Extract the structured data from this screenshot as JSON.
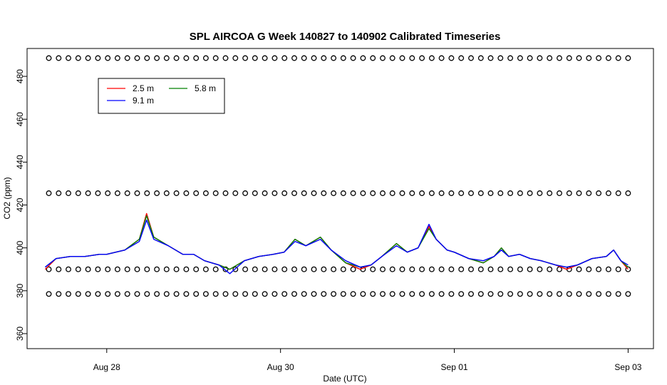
{
  "chart_data": {
    "type": "line",
    "title": "SPL AIRCOA G  Week 140827 to 140902  Calibrated Timeseries",
    "xlabel": "Date (UTC)",
    "ylabel": "CO2 (ppm)",
    "xlim": [
      "2014-08-27T02:00",
      "2014-09-03T07:00"
    ],
    "ylim": [
      353,
      493
    ],
    "x_ticks": [
      {
        "x": "2014-08-28T00:00",
        "label": "Aug 28"
      },
      {
        "x": "2014-08-30T00:00",
        "label": "Aug 30"
      },
      {
        "x": "2014-09-01T00:00",
        "label": "Sep 01"
      },
      {
        "x": "2014-09-03T00:00",
        "label": "Sep 03"
      }
    ],
    "y_ticks": [
      360,
      380,
      400,
      420,
      440,
      460,
      480
    ],
    "grid": false,
    "legend": {
      "position": "top-left",
      "columns": 2
    },
    "series": [
      {
        "name": "2.5 m",
        "color": "#ff0000",
        "points": [
          [
            "2014-08-27T07:00",
            390
          ],
          [
            "2014-08-27T10:00",
            395
          ],
          [
            "2014-08-27T14:00",
            396
          ],
          [
            "2014-08-27T18:00",
            396
          ],
          [
            "2014-08-27T22:00",
            397
          ],
          [
            "2014-08-28T00:00",
            397
          ],
          [
            "2014-08-28T05:00",
            399
          ],
          [
            "2014-08-28T09:00",
            404
          ],
          [
            "2014-08-28T11:00",
            416
          ],
          [
            "2014-08-28T13:00",
            405
          ],
          [
            "2014-08-28T17:00",
            401
          ],
          [
            "2014-08-28T21:00",
            397
          ],
          [
            "2014-08-29T00:00",
            397
          ],
          [
            "2014-08-29T03:00",
            394
          ],
          [
            "2014-08-29T07:00",
            392
          ],
          [
            "2014-08-29T10:00",
            390
          ],
          [
            "2014-08-29T14:00",
            394
          ],
          [
            "2014-08-29T18:00",
            396
          ],
          [
            "2014-08-29T22:00",
            397
          ],
          [
            "2014-08-30T01:00",
            398
          ],
          [
            "2014-08-30T04:00",
            404
          ],
          [
            "2014-08-30T07:00",
            401
          ],
          [
            "2014-08-30T11:00",
            405
          ],
          [
            "2014-08-30T14:00",
            399
          ],
          [
            "2014-08-30T18:00",
            393
          ],
          [
            "2014-08-30T22:00",
            390
          ],
          [
            "2014-08-31T01:00",
            392
          ],
          [
            "2014-08-31T04:00",
            396
          ],
          [
            "2014-08-31T08:00",
            402
          ],
          [
            "2014-08-31T11:00",
            398
          ],
          [
            "2014-08-31T14:00",
            400
          ],
          [
            "2014-08-31T17:00",
            410
          ],
          [
            "2014-08-31T19:00",
            404
          ],
          [
            "2014-08-31T22:00",
            399
          ],
          [
            "2014-09-01T00:00",
            398
          ],
          [
            "2014-09-01T04:00",
            395
          ],
          [
            "2014-09-01T08:00",
            393
          ],
          [
            "2014-09-01T11:00",
            396
          ],
          [
            "2014-09-01T13:00",
            400
          ],
          [
            "2014-09-01T15:00",
            396
          ],
          [
            "2014-09-01T18:00",
            397
          ],
          [
            "2014-09-01T21:00",
            395
          ],
          [
            "2014-09-02T00:00",
            394
          ],
          [
            "2014-09-02T04:00",
            392
          ],
          [
            "2014-09-02T07:00",
            390
          ],
          [
            "2014-09-02T10:00",
            392
          ],
          [
            "2014-09-02T14:00",
            395
          ],
          [
            "2014-09-02T18:00",
            396
          ],
          [
            "2014-09-02T20:00",
            399
          ],
          [
            "2014-09-02T22:00",
            394
          ],
          [
            "2014-09-03T00:00",
            390
          ]
        ]
      },
      {
        "name": "5.8 m",
        "color": "#008000",
        "points": [
          [
            "2014-08-27T07:00",
            391
          ],
          [
            "2014-08-27T10:00",
            395
          ],
          [
            "2014-08-27T14:00",
            396
          ],
          [
            "2014-08-27T18:00",
            396
          ],
          [
            "2014-08-27T22:00",
            397
          ],
          [
            "2014-08-28T00:00",
            397
          ],
          [
            "2014-08-28T05:00",
            399
          ],
          [
            "2014-08-28T09:00",
            404
          ],
          [
            "2014-08-28T11:00",
            415
          ],
          [
            "2014-08-28T13:00",
            405
          ],
          [
            "2014-08-28T17:00",
            401
          ],
          [
            "2014-08-28T21:00",
            397
          ],
          [
            "2014-08-29T00:00",
            397
          ],
          [
            "2014-08-29T03:00",
            394
          ],
          [
            "2014-08-29T07:00",
            392
          ],
          [
            "2014-08-29T10:00",
            390
          ],
          [
            "2014-08-29T14:00",
            394
          ],
          [
            "2014-08-29T18:00",
            396
          ],
          [
            "2014-08-29T22:00",
            397
          ],
          [
            "2014-08-30T01:00",
            398
          ],
          [
            "2014-08-30T04:00",
            404
          ],
          [
            "2014-08-30T07:00",
            401
          ],
          [
            "2014-08-30T11:00",
            405
          ],
          [
            "2014-08-30T14:00",
            399
          ],
          [
            "2014-08-30T18:00",
            393
          ],
          [
            "2014-08-30T22:00",
            391
          ],
          [
            "2014-08-31T01:00",
            392
          ],
          [
            "2014-08-31T04:00",
            396
          ],
          [
            "2014-08-31T08:00",
            402
          ],
          [
            "2014-08-31T11:00",
            398
          ],
          [
            "2014-08-31T14:00",
            400
          ],
          [
            "2014-08-31T17:00",
            409
          ],
          [
            "2014-08-31T19:00",
            404
          ],
          [
            "2014-08-31T22:00",
            399
          ],
          [
            "2014-09-01T00:00",
            398
          ],
          [
            "2014-09-01T04:00",
            395
          ],
          [
            "2014-09-01T08:00",
            393
          ],
          [
            "2014-09-01T11:00",
            396
          ],
          [
            "2014-09-01T13:00",
            400
          ],
          [
            "2014-09-01T15:00",
            396
          ],
          [
            "2014-09-01T18:00",
            397
          ],
          [
            "2014-09-01T21:00",
            395
          ],
          [
            "2014-09-02T00:00",
            394
          ],
          [
            "2014-09-02T04:00",
            392
          ],
          [
            "2014-09-02T07:00",
            391
          ],
          [
            "2014-09-02T10:00",
            392
          ],
          [
            "2014-09-02T14:00",
            395
          ],
          [
            "2014-09-02T18:00",
            396
          ],
          [
            "2014-09-02T20:00",
            399
          ],
          [
            "2014-09-02T22:00",
            394
          ],
          [
            "2014-09-03T00:00",
            391
          ]
        ]
      },
      {
        "name": "9.1 m",
        "color": "#0000ff",
        "points": [
          [
            "2014-08-27T07:00",
            391
          ],
          [
            "2014-08-27T10:00",
            395
          ],
          [
            "2014-08-27T14:00",
            396
          ],
          [
            "2014-08-27T18:00",
            396
          ],
          [
            "2014-08-27T22:00",
            397
          ],
          [
            "2014-08-28T00:00",
            397
          ],
          [
            "2014-08-28T05:00",
            399
          ],
          [
            "2014-08-28T09:00",
            403
          ],
          [
            "2014-08-28T11:00",
            413
          ],
          [
            "2014-08-28T13:00",
            404
          ],
          [
            "2014-08-28T17:00",
            401
          ],
          [
            "2014-08-28T21:00",
            397
          ],
          [
            "2014-08-29T00:00",
            397
          ],
          [
            "2014-08-29T03:00",
            394
          ],
          [
            "2014-08-29T07:00",
            392
          ],
          [
            "2014-08-29T10:00",
            388
          ],
          [
            "2014-08-29T14:00",
            394
          ],
          [
            "2014-08-29T18:00",
            396
          ],
          [
            "2014-08-29T22:00",
            397
          ],
          [
            "2014-08-30T01:00",
            398
          ],
          [
            "2014-08-30T04:00",
            403
          ],
          [
            "2014-08-30T07:00",
            401
          ],
          [
            "2014-08-30T11:00",
            404
          ],
          [
            "2014-08-30T14:00",
            399
          ],
          [
            "2014-08-30T18:00",
            394
          ],
          [
            "2014-08-30T22:00",
            391
          ],
          [
            "2014-08-31T01:00",
            392
          ],
          [
            "2014-08-31T04:00",
            396
          ],
          [
            "2014-08-31T08:00",
            401
          ],
          [
            "2014-08-31T11:00",
            398
          ],
          [
            "2014-08-31T14:00",
            400
          ],
          [
            "2014-08-31T17:00",
            411
          ],
          [
            "2014-08-31T19:00",
            404
          ],
          [
            "2014-08-31T22:00",
            399
          ],
          [
            "2014-09-01T00:00",
            398
          ],
          [
            "2014-09-01T04:00",
            395
          ],
          [
            "2014-09-01T08:00",
            394
          ],
          [
            "2014-09-01T11:00",
            396
          ],
          [
            "2014-09-01T13:00",
            399
          ],
          [
            "2014-09-01T15:00",
            396
          ],
          [
            "2014-09-01T18:00",
            397
          ],
          [
            "2014-09-01T21:00",
            395
          ],
          [
            "2014-09-02T00:00",
            394
          ],
          [
            "2014-09-02T04:00",
            392
          ],
          [
            "2014-09-02T07:00",
            391
          ],
          [
            "2014-09-02T10:00",
            392
          ],
          [
            "2014-09-02T14:00",
            395
          ],
          [
            "2014-09-02T18:00",
            396
          ],
          [
            "2014-09-02T20:00",
            399
          ],
          [
            "2014-09-02T22:00",
            394
          ],
          [
            "2014-09-03T00:00",
            392
          ]
        ]
      }
    ],
    "calibration_markers": {
      "symbol": "circle",
      "x_start": "2014-08-27T08:00",
      "x_end": "2014-09-03T00:00",
      "rows": [
        {
          "y": 488.5,
          "count": 60
        },
        {
          "y": 425.5,
          "count": 60
        },
        {
          "y": 390.0,
          "count": 60
        },
        {
          "y": 378.5,
          "count": 60
        }
      ]
    }
  }
}
